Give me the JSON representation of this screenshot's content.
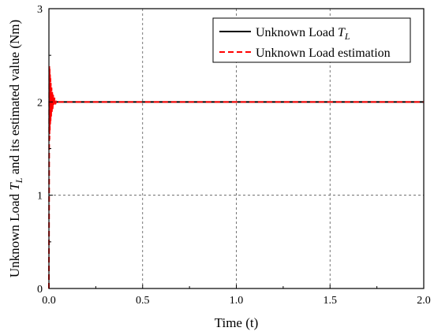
{
  "chart_data": {
    "type": "line",
    "title": "",
    "xlabel": "Time (t)",
    "ylabel_parts": {
      "prefix": "Unknown Load ",
      "symbol": "T",
      "subscript": "L",
      "suffix": " and its estimated value  (Nm)"
    },
    "xlim": [
      0,
      2.0
    ],
    "ylim": [
      0,
      3
    ],
    "x_ticks": [
      "0.0",
      "0.5",
      "1.0",
      "1.5",
      "2.0"
    ],
    "y_ticks": [
      "0",
      "1",
      "2",
      "3"
    ],
    "grid": true,
    "legend_position": "top-right",
    "series": [
      {
        "name_parts": {
          "prefix": "Unknown Load  ",
          "symbol": "T",
          "subscript": "L"
        },
        "style": "solid",
        "color": "#000000",
        "x": [
          0,
          2.0
        ],
        "y": [
          2,
          2
        ]
      },
      {
        "name": "Unknown Load estimation",
        "style": "dashed",
        "color": "#ff0000",
        "x": [
          0,
          0.001,
          0.002,
          0.003,
          0.004,
          0.005,
          0.006,
          0.007,
          0.008,
          0.009,
          0.01,
          0.012,
          0.014,
          0.016,
          0.018,
          0.02,
          0.023,
          0.026,
          0.03,
          0.035,
          0.04,
          0.05,
          0.1,
          0.5,
          1.0,
          1.5,
          2.0
        ],
        "y": [
          0,
          1.0,
          2.4,
          1.6,
          2.35,
          1.7,
          2.3,
          1.75,
          2.25,
          1.8,
          2.2,
          1.85,
          2.15,
          1.9,
          2.1,
          1.93,
          2.07,
          1.96,
          2.04,
          1.98,
          2.02,
          2.0,
          2.0,
          2.0,
          2.0,
          2.0,
          2.0
        ]
      }
    ]
  }
}
